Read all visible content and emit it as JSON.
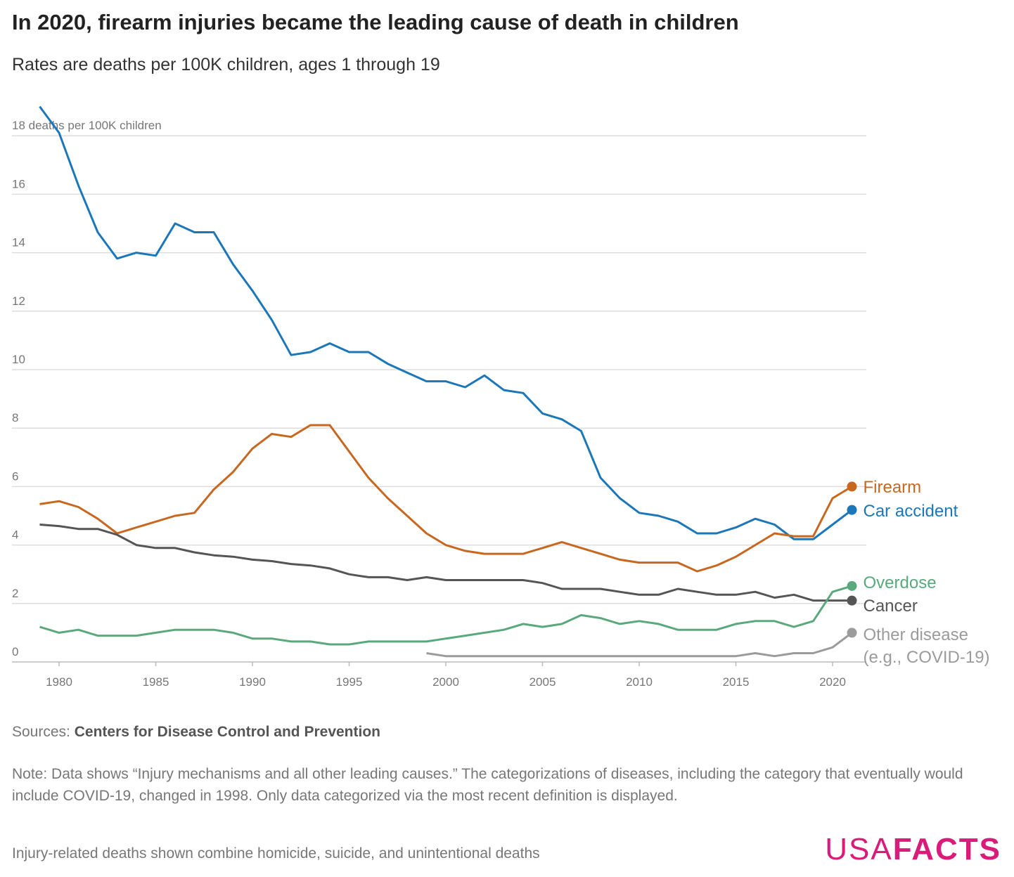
{
  "chart_data": {
    "type": "line",
    "title": "In 2020, firearm injuries became the leading cause of death in children",
    "subtitle": "Rates are deaths per 100K children, ages 1 through 19",
    "x": [
      1979,
      1980,
      1981,
      1982,
      1983,
      1984,
      1985,
      1986,
      1987,
      1988,
      1989,
      1990,
      1991,
      1992,
      1993,
      1994,
      1995,
      1996,
      1997,
      1998,
      1999,
      2000,
      2001,
      2002,
      2003,
      2004,
      2005,
      2006,
      2007,
      2008,
      2009,
      2010,
      2011,
      2012,
      2013,
      2014,
      2015,
      2016,
      2017,
      2018,
      2019,
      2020,
      2021
    ],
    "xlim": [
      1979,
      2021
    ],
    "xticks": [
      1980,
      1985,
      1990,
      1995,
      2000,
      2005,
      2010,
      2015,
      2020
    ],
    "ylim": [
      0,
      19
    ],
    "yticks": [
      0,
      2,
      4,
      6,
      8,
      10,
      12,
      14,
      16,
      {
        "value": 18,
        "label": "18 deaths per 100K children"
      }
    ],
    "grid": true,
    "series": [
      {
        "name": "Car accident",
        "color": "#1b77b9",
        "values": [
          19.0,
          18.1,
          16.3,
          14.7,
          13.8,
          14.0,
          13.9,
          15.0,
          14.7,
          14.7,
          13.6,
          12.7,
          11.7,
          10.5,
          10.6,
          10.9,
          10.6,
          10.6,
          10.2,
          9.9,
          9.6,
          9.6,
          9.4,
          9.8,
          9.3,
          9.2,
          8.5,
          8.3,
          7.9,
          6.3,
          5.6,
          5.1,
          5.0,
          4.8,
          4.4,
          4.4,
          4.6,
          4.9,
          4.7,
          4.2,
          4.2,
          4.7,
          5.2
        ]
      },
      {
        "name": "Firearm",
        "color": "#c8671f",
        "values": [
          5.4,
          5.5,
          5.3,
          4.9,
          4.4,
          4.6,
          4.8,
          5.0,
          5.1,
          5.9,
          6.5,
          7.3,
          7.8,
          7.7,
          8.1,
          8.1,
          7.2,
          6.3,
          5.6,
          5.0,
          4.4,
          4.0,
          3.8,
          3.7,
          3.7,
          3.7,
          3.9,
          4.1,
          3.9,
          3.7,
          3.5,
          3.4,
          3.4,
          3.4,
          3.1,
          3.3,
          3.6,
          4.0,
          4.4,
          4.3,
          4.3,
          5.6,
          6.0
        ]
      },
      {
        "name": "Cancer",
        "color": "#555555",
        "values": [
          4.7,
          4.65,
          4.55,
          4.55,
          4.35,
          4.0,
          3.9,
          3.9,
          3.75,
          3.65,
          3.6,
          3.5,
          3.45,
          3.35,
          3.3,
          3.2,
          3.0,
          2.9,
          2.9,
          2.8,
          2.9,
          2.8,
          2.8,
          2.8,
          2.8,
          2.8,
          2.7,
          2.5,
          2.5,
          2.5,
          2.4,
          2.3,
          2.3,
          2.5,
          2.4,
          2.3,
          2.3,
          2.4,
          2.2,
          2.3,
          2.1,
          2.1,
          2.1
        ]
      },
      {
        "name": "Overdose",
        "color": "#5aa97c",
        "values": [
          1.2,
          1.0,
          1.1,
          0.9,
          0.9,
          0.9,
          1.0,
          1.1,
          1.1,
          1.1,
          1.0,
          0.8,
          0.8,
          0.7,
          0.7,
          0.6,
          0.6,
          0.7,
          0.7,
          0.7,
          0.7,
          0.8,
          0.9,
          1.0,
          1.1,
          1.3,
          1.2,
          1.3,
          1.6,
          1.5,
          1.3,
          1.4,
          1.3,
          1.1,
          1.1,
          1.1,
          1.3,
          1.4,
          1.4,
          1.2,
          1.4,
          2.4,
          2.6
        ]
      },
      {
        "name": "Other disease (e.g., COVID-19)",
        "color": "#9b9b9b",
        "values": [
          null,
          null,
          null,
          null,
          null,
          null,
          null,
          null,
          null,
          null,
          null,
          null,
          null,
          null,
          null,
          null,
          null,
          null,
          null,
          null,
          0.3,
          0.2,
          0.2,
          0.2,
          0.2,
          0.2,
          0.2,
          0.2,
          0.2,
          0.2,
          0.2,
          0.2,
          0.2,
          0.2,
          0.2,
          0.2,
          0.2,
          0.3,
          0.2,
          0.3,
          0.3,
          0.5,
          1.0
        ]
      }
    ],
    "sources_label": "Sources:",
    "sources": "Centers for Disease Control and Prevention",
    "note": "Note: Data shows “Injury mechanisms and all other leading causes.” The categorizations of diseases, including the category that eventually would include COVID-19, changed in 1998. Only data categorized via the most recent definition is displayed.",
    "footnote": "Injury-related deaths shown combine homicide, suicide, and unintentional deaths",
    "logo": [
      "USA",
      "FACTS"
    ]
  }
}
